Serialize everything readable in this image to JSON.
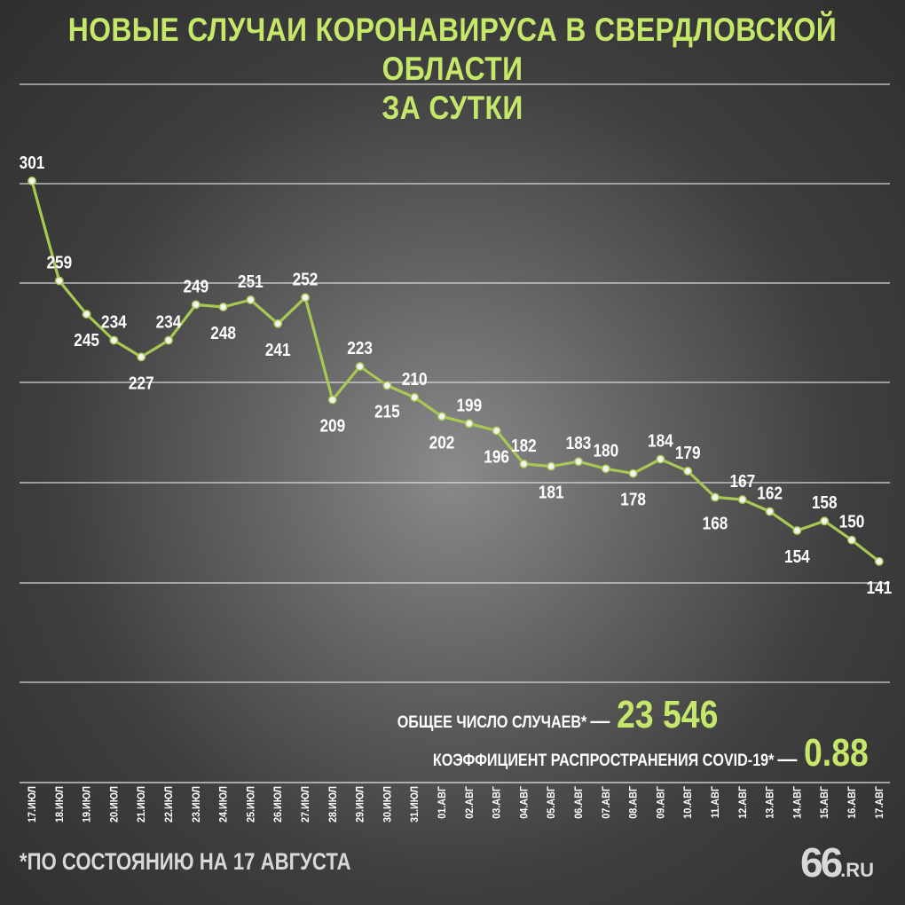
{
  "title": {
    "line1": "НОВЫЕ СЛУЧАИ КОРОНАВИРУСА В СВЕРДЛОВСКОЙ ОБЛАСТИ",
    "line2": "ЗА СУТКИ"
  },
  "totals": {
    "total_label": "ОБЩЕЕ ЧИСЛО СЛУЧАЕВ*",
    "total_dash": "—",
    "total_value": "23 546",
    "r_label": "КОЭФФИЦИЕНТ РАСПРОСТРАНЕНИЯ COVID-19*",
    "r_dash": "—",
    "r_value": "0.88"
  },
  "footnote": "*ПО СОСТОЯНИЮ НА 17 АВГУСТА",
  "logo": {
    "big": "66",
    "small": ".RU"
  },
  "colors": {
    "accent": "#c6e86a",
    "line": "#a8c855",
    "gridline": "#e6e6e6",
    "text": "#ffffff"
  },
  "chart_data": {
    "type": "line",
    "title": "НОВЫЕ СЛУЧАИ КОРОНАВИРУСА В СВЕРДЛОВСКОЙ ОБЛАСТИ ЗА СУТКИ",
    "xlabel": "",
    "ylabel": "",
    "ylim": [
      100,
      340
    ],
    "grid": true,
    "categories": [
      "17.ИЮЛ",
      "18.ИЮЛ",
      "19.ИЮЛ",
      "20.ИЮЛ",
      "21.ИЮЛ",
      "22.ИЮЛ",
      "23.ИЮЛ",
      "24.ИЮЛ",
      "25.ИЮЛ",
      "26.ИЮЛ",
      "27.ИЮЛ",
      "28.ИЮЛ",
      "29.ИЮЛ",
      "30.ИЮЛ",
      "31.ИЮЛ",
      "01.АВГ",
      "02.АВГ",
      "03.АВГ",
      "04.АВГ",
      "05.АВГ",
      "06.АВГ",
      "07.АВГ",
      "08.АВГ",
      "09.АВГ",
      "10.АВГ",
      "11.АВГ",
      "12.АВГ",
      "13.АВГ",
      "14.АВГ",
      "15.АВГ",
      "16.АВГ",
      "17.АВГ"
    ],
    "values": [
      301,
      259,
      245,
      234,
      227,
      234,
      249,
      248,
      251,
      241,
      252,
      209,
      223,
      215,
      210,
      202,
      199,
      196,
      182,
      181,
      183,
      180,
      178,
      184,
      179,
      168,
      167,
      162,
      154,
      158,
      150,
      141
    ],
    "label_side": [
      "above",
      "above",
      "below",
      "above",
      "below",
      "above",
      "above",
      "below",
      "above",
      "below",
      "above",
      "below",
      "above",
      "below",
      "above",
      "below",
      "above",
      "below",
      "above",
      "below",
      "above",
      "above",
      "below",
      "above",
      "above",
      "below",
      "above",
      "above",
      "below",
      "above",
      "above",
      "below"
    ]
  }
}
